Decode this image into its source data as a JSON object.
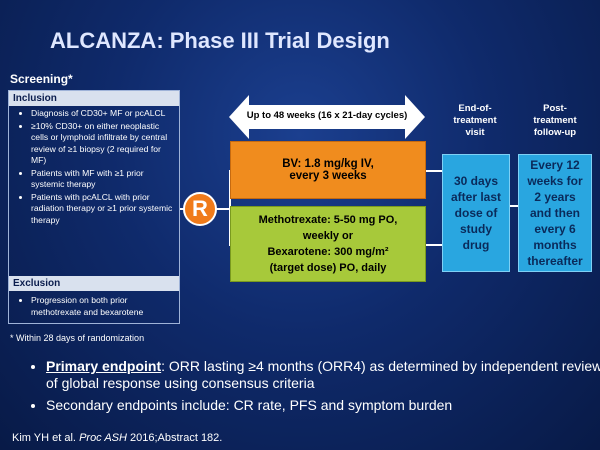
{
  "title": "ALCANZA: Phase III Trial Design",
  "screening": {
    "label": "Screening*",
    "inclusion_header": "Inclusion",
    "inclusion_items": [
      "Diagnosis of CD30+ MF or pcALCL",
      "≥10% CD30+ on either neoplastic cells or lymphoid infiltrate by central review of ≥1 biopsy (2 required for MF)",
      "Patients with MF with ≥1 prior systemic therapy",
      "Patients with pcALCL with prior radiation therapy or ≥1 prior systemic therapy"
    ],
    "exclusion_header": "Exclusion",
    "exclusion_items": [
      "Progression on both prior methotrexate and bexarotene"
    ],
    "footnote": "* Within 28 days of randomization"
  },
  "randomization_label": "R",
  "duration_label": "Up to 48 weeks (16 x 21-day cycles)",
  "arm_bv": {
    "line1": "BV: 1.8 mg/kg IV,",
    "line2": "every 3 weeks"
  },
  "arm_control": {
    "line1": "Methotrexate: 5-50 mg PO,",
    "line2": "weekly or",
    "line3": "Bexarotene: 300 mg/m²",
    "line4": "(target dose) PO, daily"
  },
  "end_of_treatment": {
    "heading": [
      "End-of-",
      "treatment",
      "visit"
    ],
    "box": [
      "30 days",
      "after last",
      "dose of",
      "study",
      "drug"
    ]
  },
  "post_treatment": {
    "heading": [
      "Post-",
      "treatment",
      "follow-up"
    ],
    "box": [
      "Every 12",
      "weeks for",
      "2 years",
      "and then",
      "every 6",
      "months",
      "thereafter"
    ]
  },
  "endpoints": {
    "primary_label": "Primary endpoint",
    "primary_text": ": ORR lasting ≥4 months (ORR4) as determined by independent review of global response using consensus criteria",
    "secondary_text": "Secondary endpoints include: CR rate, PFS and symptom burden"
  },
  "citation": {
    "authors": "Kim YH et al.",
    "journal": "Proc ASH",
    "rest": " 2016;Abstract 182."
  },
  "colors": {
    "background": "#0f2a6b",
    "bv_arm": "#f08c1e",
    "control_arm": "#a7c93a",
    "followup_boxes": "#29a6e0",
    "randomization": "#f07b1a"
  }
}
